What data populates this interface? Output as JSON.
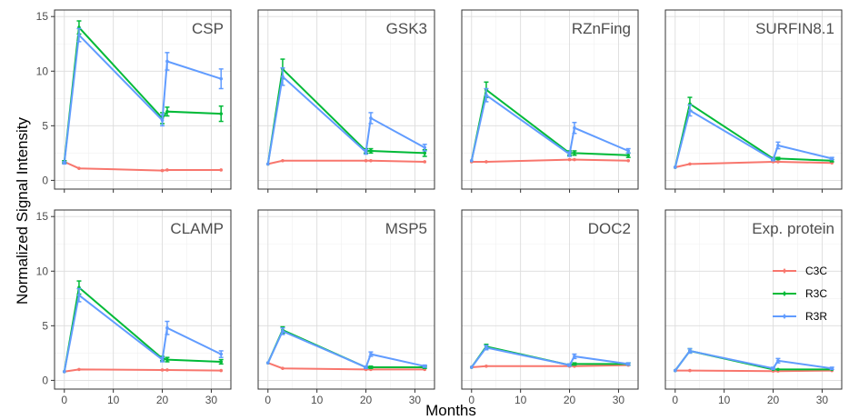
{
  "chart_data": {
    "type": "line",
    "xlabel": "Months",
    "ylabel": "Normalized Signal Intensity",
    "xlim": [
      -2,
      34
    ],
    "ylim": [
      -0.8,
      15.6
    ],
    "x_ticks": [
      0,
      10,
      20,
      30
    ],
    "y_ticks": [
      0,
      5,
      10,
      15
    ],
    "grid": true,
    "legend_position": "inside-bottom-right-panel",
    "series_styles": [
      {
        "name": "C3C",
        "color": "#F8766D"
      },
      {
        "name": "R3C",
        "color": "#00BA38"
      },
      {
        "name": "R3R",
        "color": "#619CFF"
      }
    ],
    "panels": [
      {
        "title": "CSP",
        "series": [
          {
            "name": "C3C",
            "points": [
              [
                0,
                1.7,
                0.1
              ],
              [
                3,
                1.1,
                0.05
              ],
              [
                20,
                0.9,
                0.05
              ],
              [
                21,
                0.95,
                0.05
              ],
              [
                32,
                0.95,
                0.05
              ]
            ]
          },
          {
            "name": "R3C",
            "points": [
              [
                0,
                1.7,
                0.1
              ],
              [
                3,
                14.0,
                0.6
              ],
              [
                20,
                5.7,
                0.5
              ],
              [
                21,
                6.3,
                0.4
              ],
              [
                32,
                6.1,
                0.7
              ]
            ]
          },
          {
            "name": "R3R",
            "points": [
              [
                0,
                1.6,
                0.1
              ],
              [
                3,
                13.3,
                0.6
              ],
              [
                20,
                5.5,
                0.5
              ],
              [
                21,
                10.9,
                0.8
              ],
              [
                32,
                9.3,
                0.9
              ]
            ]
          }
        ]
      },
      {
        "title": "GSK3",
        "series": [
          {
            "name": "C3C",
            "points": [
              [
                0,
                1.5,
                0.08
              ],
              [
                3,
                1.8,
                0.05
              ],
              [
                20,
                1.8,
                0.05
              ],
              [
                21,
                1.8,
                0.05
              ],
              [
                32,
                1.7,
                0.05
              ]
            ]
          },
          {
            "name": "R3C",
            "points": [
              [
                0,
                1.5,
                0.08
              ],
              [
                3,
                10.2,
                0.9
              ],
              [
                20,
                2.7,
                0.2
              ],
              [
                21,
                2.7,
                0.2
              ],
              [
                32,
                2.5,
                0.3
              ]
            ]
          },
          {
            "name": "R3R",
            "points": [
              [
                0,
                1.5,
                0.08
              ],
              [
                3,
                9.5,
                0.8
              ],
              [
                20,
                2.6,
                0.2
              ],
              [
                21,
                5.7,
                0.5
              ],
              [
                32,
                3.0,
                0.3
              ]
            ]
          }
        ]
      },
      {
        "title": "RZnFing",
        "series": [
          {
            "name": "C3C",
            "points": [
              [
                0,
                1.7,
                0.05
              ],
              [
                3,
                1.7,
                0.05
              ],
              [
                20,
                1.9,
                0.05
              ],
              [
                21,
                1.9,
                0.05
              ],
              [
                32,
                1.8,
                0.05
              ]
            ]
          },
          {
            "name": "R3C",
            "points": [
              [
                0,
                1.8,
                0.05
              ],
              [
                3,
                8.3,
                0.7
              ],
              [
                20,
                2.5,
                0.2
              ],
              [
                21,
                2.5,
                0.2
              ],
              [
                32,
                2.3,
                0.2
              ]
            ]
          },
          {
            "name": "R3R",
            "points": [
              [
                0,
                1.8,
                0.05
              ],
              [
                3,
                7.8,
                0.6
              ],
              [
                20,
                2.4,
                0.2
              ],
              [
                21,
                4.8,
                0.5
              ],
              [
                32,
                2.7,
                0.2
              ]
            ]
          }
        ]
      },
      {
        "title": "SURFIN8.1",
        "series": [
          {
            "name": "C3C",
            "points": [
              [
                0,
                1.2,
                0.05
              ],
              [
                3,
                1.5,
                0.05
              ],
              [
                20,
                1.7,
                0.05
              ],
              [
                21,
                1.7,
                0.05
              ],
              [
                32,
                1.6,
                0.05
              ]
            ]
          },
          {
            "name": "R3C",
            "points": [
              [
                0,
                1.2,
                0.05
              ],
              [
                3,
                7.0,
                0.6
              ],
              [
                20,
                2.0,
                0.1
              ],
              [
                21,
                2.0,
                0.1
              ],
              [
                32,
                1.8,
                0.1
              ]
            ]
          },
          {
            "name": "R3R",
            "points": [
              [
                0,
                1.2,
                0.05
              ],
              [
                3,
                6.4,
                0.5
              ],
              [
                20,
                1.9,
                0.1
              ],
              [
                21,
                3.2,
                0.3
              ],
              [
                32,
                2.0,
                0.1
              ]
            ]
          }
        ]
      },
      {
        "title": "CLAMP",
        "series": [
          {
            "name": "C3C",
            "points": [
              [
                0,
                0.8,
                0.03
              ],
              [
                3,
                1.0,
                0.03
              ],
              [
                20,
                0.95,
                0.03
              ],
              [
                21,
                0.95,
                0.03
              ],
              [
                32,
                0.9,
                0.03
              ]
            ]
          },
          {
            "name": "R3C",
            "points": [
              [
                0,
                0.8,
                0.03
              ],
              [
                3,
                8.5,
                0.6
              ],
              [
                20,
                2.0,
                0.2
              ],
              [
                21,
                1.9,
                0.2
              ],
              [
                32,
                1.7,
                0.2
              ]
            ]
          },
          {
            "name": "R3R",
            "points": [
              [
                0,
                0.8,
                0.03
              ],
              [
                3,
                7.8,
                0.6
              ],
              [
                20,
                1.9,
                0.2
              ],
              [
                21,
                4.8,
                0.6
              ],
              [
                32,
                2.4,
                0.3
              ]
            ]
          }
        ]
      },
      {
        "title": "MSP5",
        "series": [
          {
            "name": "C3C",
            "points": [
              [
                0,
                1.6,
                0.05
              ],
              [
                3,
                1.1,
                0.05
              ],
              [
                20,
                1.0,
                0.05
              ],
              [
                21,
                1.0,
                0.05
              ],
              [
                32,
                1.0,
                0.05
              ]
            ]
          },
          {
            "name": "R3C",
            "points": [
              [
                0,
                1.6,
                0.05
              ],
              [
                3,
                4.6,
                0.3
              ],
              [
                20,
                1.2,
                0.1
              ],
              [
                21,
                1.2,
                0.1
              ],
              [
                32,
                1.2,
                0.1
              ]
            ]
          },
          {
            "name": "R3R",
            "points": [
              [
                0,
                1.6,
                0.05
              ],
              [
                3,
                4.5,
                0.3
              ],
              [
                20,
                1.2,
                0.1
              ],
              [
                21,
                2.4,
                0.2
              ],
              [
                32,
                1.3,
                0.1
              ]
            ]
          }
        ]
      },
      {
        "title": "DOC2",
        "series": [
          {
            "name": "C3C",
            "points": [
              [
                0,
                1.2,
                0.05
              ],
              [
                3,
                1.3,
                0.05
              ],
              [
                20,
                1.3,
                0.05
              ],
              [
                21,
                1.3,
                0.05
              ],
              [
                32,
                1.4,
                0.05
              ]
            ]
          },
          {
            "name": "R3C",
            "points": [
              [
                0,
                1.2,
                0.05
              ],
              [
                3,
                3.1,
                0.2
              ],
              [
                20,
                1.4,
                0.1
              ],
              [
                21,
                1.5,
                0.1
              ],
              [
                32,
                1.5,
                0.1
              ]
            ]
          },
          {
            "name": "R3R",
            "points": [
              [
                0,
                1.2,
                0.05
              ],
              [
                3,
                3.0,
                0.2
              ],
              [
                20,
                1.4,
                0.1
              ],
              [
                21,
                2.2,
                0.2
              ],
              [
                32,
                1.5,
                0.1
              ]
            ]
          }
        ]
      },
      {
        "title": "Exp. protein",
        "series": [
          {
            "name": "C3C",
            "points": [
              [
                0,
                0.9,
                0.03
              ],
              [
                3,
                0.9,
                0.03
              ],
              [
                20,
                0.85,
                0.03
              ],
              [
                21,
                0.85,
                0.03
              ],
              [
                32,
                0.9,
                0.03
              ]
            ]
          },
          {
            "name": "R3C",
            "points": [
              [
                0,
                0.9,
                0.03
              ],
              [
                3,
                2.7,
                0.2
              ],
              [
                20,
                1.0,
                0.05
              ],
              [
                21,
                1.0,
                0.05
              ],
              [
                32,
                1.0,
                0.05
              ]
            ]
          },
          {
            "name": "R3R",
            "points": [
              [
                0,
                0.9,
                0.03
              ],
              [
                3,
                2.7,
                0.2
              ],
              [
                20,
                1.1,
                0.1
              ],
              [
                21,
                1.8,
                0.2
              ],
              [
                32,
                1.1,
                0.1
              ]
            ]
          }
        ]
      }
    ]
  }
}
